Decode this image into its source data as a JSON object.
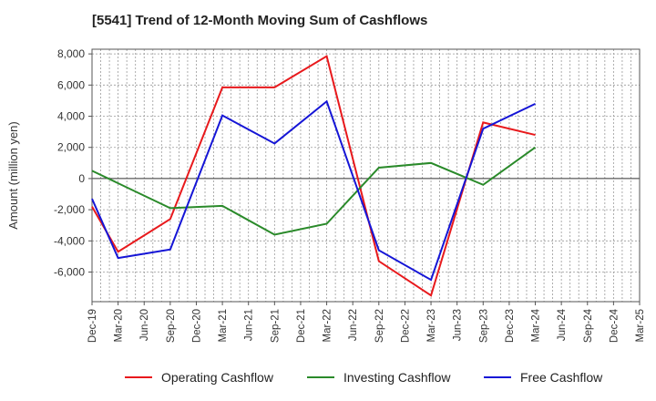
{
  "chart_data": {
    "type": "line",
    "title": "[5541]  Trend of 12-Month Moving Sum of Cashflows",
    "ylabel": "Amount (million yen)",
    "xlabel": "",
    "ylim": [
      -7900,
      8300
    ],
    "yticks": [
      8000,
      6000,
      4000,
      2000,
      0,
      -2000,
      -4000,
      -6000
    ],
    "ytick_labels": [
      "8,000",
      "6,000",
      "4,000",
      "2,000",
      "0",
      "-2,000",
      "-4,000",
      "-6,000"
    ],
    "categories": [
      "Dec-19",
      "Mar-20",
      "Jun-20",
      "Sep-20",
      "Dec-20",
      "Mar-21",
      "Jun-21",
      "Sep-21",
      "Dec-21",
      "Mar-22",
      "Jun-22",
      "Sep-22",
      "Dec-22",
      "Mar-23",
      "Jun-23",
      "Sep-23",
      "Dec-23",
      "Mar-24",
      "Jun-24",
      "Sep-24",
      "Dec-24",
      "Mar-25"
    ],
    "grid": true,
    "legend_position": "bottom",
    "series": [
      {
        "name": "Operating Cashflow",
        "color": "#e8191c",
        "points": [
          [
            "Dec-19",
            -1800
          ],
          [
            "Mar-20",
            -4700
          ],
          [
            "Sep-20",
            -2600
          ],
          [
            "Mar-21",
            5850
          ],
          [
            "Sep-21",
            5850
          ],
          [
            "Mar-22",
            7850
          ],
          [
            "Sep-22",
            -5300
          ],
          [
            "Mar-23",
            -7500
          ],
          [
            "Sep-23",
            3600
          ],
          [
            "Mar-24",
            2800
          ]
        ]
      },
      {
        "name": "Investing Cashflow",
        "color": "#2a8a2a",
        "points": [
          [
            "Dec-19",
            500
          ],
          [
            "Sep-20",
            -1900
          ],
          [
            "Mar-21",
            -1750
          ],
          [
            "Sep-21",
            -3600
          ],
          [
            "Mar-22",
            -2900
          ],
          [
            "Sep-22",
            700
          ],
          [
            "Mar-23",
            1000
          ],
          [
            "Sep-23",
            -400
          ],
          [
            "Mar-24",
            2000
          ]
        ]
      },
      {
        "name": "Free Cashflow",
        "color": "#1515d6",
        "points": [
          [
            "Dec-19",
            -1300
          ],
          [
            "Mar-20",
            -5100
          ],
          [
            "Sep-20",
            -4550
          ],
          [
            "Mar-21",
            4050
          ],
          [
            "Sep-21",
            2250
          ],
          [
            "Mar-22",
            4950
          ],
          [
            "Sep-22",
            -4600
          ],
          [
            "Mar-23",
            -6500
          ],
          [
            "Sep-23",
            3200
          ],
          [
            "Mar-24",
            4800
          ]
        ]
      }
    ]
  }
}
